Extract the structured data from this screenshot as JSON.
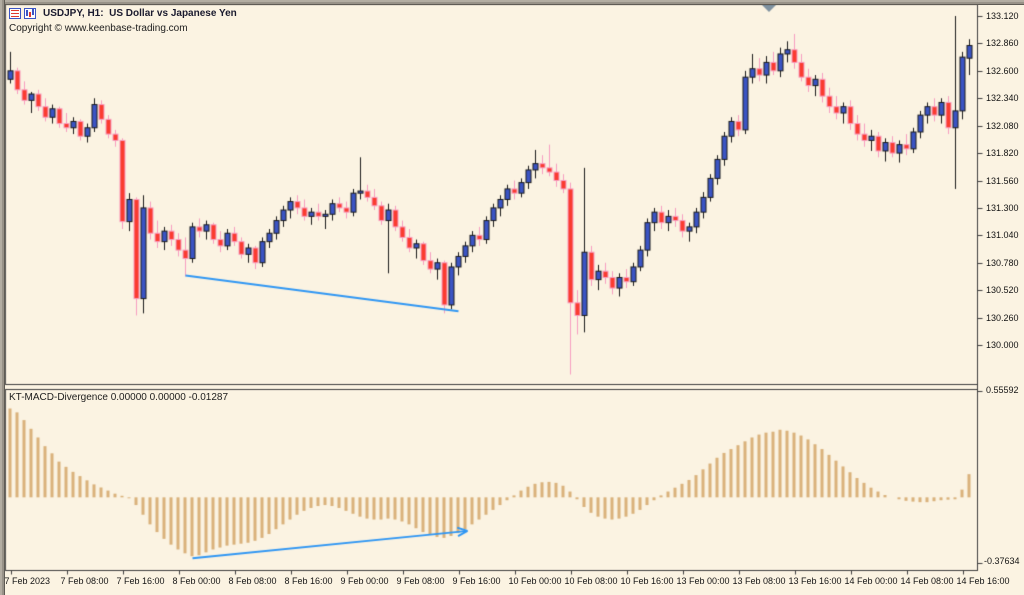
{
  "window": {
    "title": "USDJPY, H1:  US Dollar vs Japanese Yen",
    "copyright": "Copyright © www.keenbase-trading.com",
    "indicator_label": "KT-MACD-Divergence 0.00000 0.00000 -0.01287",
    "icons": [
      "ohlc-list-icon",
      "candlestick-chart-icon"
    ]
  },
  "colors": {
    "background": "#fbf3e2",
    "bull_body": "#3b54c4",
    "bull_line": "#1a1a1a",
    "bear_body": "#fa3b30",
    "bear_line": "#f79ec0",
    "histogram": "#d9b17b",
    "divergence_line": "#2f96f3",
    "border": "#3c3c3c",
    "text": "#141414",
    "shift_marker": "#7f92a0"
  },
  "chart_data": [
    {
      "type": "candlestick",
      "symbol": "USDJPY",
      "timeframe": "H1",
      "title": "USDJPY, H1:  US Dollar vs Japanese Yen",
      "ylim": [
        129.63,
        133.23
      ],
      "grid": false,
      "y_ticks": [
        {
          "label": "133.120",
          "price": 133.12
        },
        {
          "label": "132.860",
          "price": 132.86
        },
        {
          "label": "132.600",
          "price": 132.6
        },
        {
          "label": "132.340",
          "price": 132.34
        },
        {
          "label": "132.080",
          "price": 132.08
        },
        {
          "label": "131.820",
          "price": 131.82
        },
        {
          "label": "131.560",
          "price": 131.56
        },
        {
          "label": "131.300",
          "price": 131.3
        },
        {
          "label": "131.040",
          "price": 131.04
        },
        {
          "label": "130.780",
          "price": 130.78
        },
        {
          "label": "130.520",
          "price": 130.52
        },
        {
          "label": "130.260",
          "price": 130.26
        },
        {
          "label": "130.000",
          "price": 130.0
        }
      ],
      "x_ticks": [
        {
          "label": "7 Feb 2023",
          "bar": 0
        },
        {
          "label": "7 Feb 08:00",
          "bar": 8
        },
        {
          "label": "7 Feb 16:00",
          "bar": 16
        },
        {
          "label": "8 Feb 00:00",
          "bar": 24
        },
        {
          "label": "8 Feb 08:00",
          "bar": 32
        },
        {
          "label": "8 Feb 16:00",
          "bar": 40
        },
        {
          "label": "9 Feb 00:00",
          "bar": 48
        },
        {
          "label": "9 Feb 08:00",
          "bar": 56
        },
        {
          "label": "9 Feb 16:00",
          "bar": 64
        },
        {
          "label": "10 Feb 00:00",
          "bar": 72
        },
        {
          "label": "10 Feb 08:00",
          "bar": 80
        },
        {
          "label": "10 Feb 16:00",
          "bar": 88
        },
        {
          "label": "13 Feb 00:00",
          "bar": 96
        },
        {
          "label": "13 Feb 08:00",
          "bar": 104
        },
        {
          "label": "13 Feb 16:00",
          "bar": 112
        },
        {
          "label": "14 Feb 00:00",
          "bar": 120
        },
        {
          "label": "14 Feb 08:00",
          "bar": 128
        },
        {
          "label": "14 Feb 16:00",
          "bar": 136
        }
      ],
      "divergence_line": {
        "from_bar": 25,
        "from_price": 130.66,
        "to_bar": 64,
        "to_price": 130.32
      },
      "candles": [
        [
          132.52,
          132.78,
          132.48,
          132.6
        ],
        [
          132.6,
          132.63,
          132.38,
          132.42
        ],
        [
          132.42,
          132.5,
          132.28,
          132.32
        ],
        [
          132.32,
          132.4,
          132.2,
          132.38
        ],
        [
          132.38,
          132.42,
          132.22,
          132.26
        ],
        [
          132.26,
          132.34,
          132.12,
          132.16
        ],
        [
          132.16,
          132.28,
          132.1,
          132.24
        ],
        [
          132.24,
          132.26,
          132.06,
          132.1
        ],
        [
          132.1,
          132.2,
          132.02,
          132.06
        ],
        [
          132.06,
          132.16,
          132.0,
          132.12
        ],
        [
          132.12,
          132.14,
          131.94,
          131.98
        ],
        [
          131.98,
          132.1,
          131.92,
          132.06
        ],
        [
          132.06,
          132.34,
          132.02,
          132.28
        ],
        [
          132.28,
          132.32,
          132.1,
          132.14
        ],
        [
          132.14,
          132.18,
          131.96,
          132.0
        ],
        [
          132.0,
          132.04,
          131.88,
          131.94
        ],
        [
          131.94,
          131.96,
          131.1,
          131.17
        ],
        [
          131.17,
          131.44,
          131.08,
          131.38
        ],
        [
          131.38,
          131.4,
          130.28,
          130.44
        ],
        [
          130.44,
          131.42,
          130.3,
          131.3
        ],
        [
          131.3,
          131.36,
          131.0,
          131.06
        ],
        [
          131.06,
          131.18,
          130.92,
          130.98
        ],
        [
          130.98,
          131.12,
          130.9,
          131.08
        ],
        [
          131.08,
          131.14,
          130.94,
          131.0
        ],
        [
          131.0,
          131.06,
          130.84,
          130.9
        ],
        [
          130.9,
          131.02,
          130.65,
          130.82
        ],
        [
          130.82,
          131.16,
          130.78,
          131.12
        ],
        [
          131.12,
          131.2,
          131.02,
          131.08
        ],
        [
          131.08,
          131.18,
          131.0,
          131.14
        ],
        [
          131.14,
          131.16,
          130.96,
          131.0
        ],
        [
          131.0,
          131.08,
          130.88,
          130.94
        ],
        [
          130.94,
          131.1,
          130.9,
          131.06
        ],
        [
          131.06,
          131.12,
          130.94,
          130.98
        ],
        [
          130.98,
          131.02,
          130.82,
          130.86
        ],
        [
          130.86,
          130.96,
          130.78,
          130.92
        ],
        [
          130.92,
          130.94,
          130.72,
          130.78
        ],
        [
          130.78,
          131.02,
          130.74,
          130.98
        ],
        [
          130.98,
          131.1,
          130.92,
          131.06
        ],
        [
          131.06,
          131.22,
          131.0,
          131.18
        ],
        [
          131.18,
          131.32,
          131.12,
          131.28
        ],
        [
          131.28,
          131.4,
          131.2,
          131.36
        ],
        [
          131.36,
          131.42,
          131.24,
          131.3
        ],
        [
          131.3,
          131.38,
          131.18,
          131.22
        ],
        [
          131.22,
          131.3,
          131.14,
          131.26
        ],
        [
          131.26,
          131.34,
          131.18,
          131.22
        ],
        [
          131.22,
          131.28,
          131.1,
          131.24
        ],
        [
          131.24,
          131.38,
          131.18,
          131.34
        ],
        [
          131.34,
          131.4,
          131.26,
          131.3
        ],
        [
          131.3,
          131.36,
          131.2,
          131.26
        ],
        [
          131.26,
          131.48,
          131.22,
          131.44
        ],
        [
          131.44,
          131.78,
          131.38,
          131.46
        ],
        [
          131.46,
          131.52,
          131.36,
          131.4
        ],
        [
          131.4,
          131.48,
          131.28,
          131.32
        ],
        [
          131.32,
          131.36,
          131.14,
          131.18
        ],
        [
          131.18,
          131.34,
          130.68,
          131.28
        ],
        [
          131.28,
          131.32,
          131.08,
          131.12
        ],
        [
          131.12,
          131.18,
          130.98,
          131.02
        ],
        [
          131.02,
          131.1,
          130.88,
          130.92
        ],
        [
          130.92,
          131.0,
          130.82,
          130.96
        ],
        [
          130.96,
          130.98,
          130.76,
          130.8
        ],
        [
          130.8,
          130.88,
          130.68,
          130.72
        ],
        [
          130.72,
          130.82,
          130.62,
          130.78
        ],
        [
          130.78,
          130.8,
          130.3,
          130.38
        ],
        [
          130.38,
          130.78,
          130.34,
          130.74
        ],
        [
          130.74,
          130.88,
          130.66,
          130.84
        ],
        [
          130.84,
          130.98,
          130.78,
          130.94
        ],
        [
          130.94,
          131.08,
          130.88,
          131.04
        ],
        [
          131.04,
          131.12,
          130.94,
          131.0
        ],
        [
          131.0,
          131.22,
          130.96,
          131.18
        ],
        [
          131.18,
          131.34,
          131.12,
          131.3
        ],
        [
          131.3,
          131.42,
          131.22,
          131.38
        ],
        [
          131.38,
          131.52,
          131.32,
          131.48
        ],
        [
          131.48,
          131.56,
          131.38,
          131.44
        ],
        [
          131.44,
          131.58,
          131.4,
          131.54
        ],
        [
          131.54,
          131.7,
          131.48,
          131.66
        ],
        [
          131.66,
          131.85,
          131.58,
          131.72
        ],
        [
          131.72,
          131.8,
          131.62,
          131.68
        ],
        [
          131.68,
          131.9,
          131.6,
          131.64
        ],
        [
          131.64,
          131.72,
          131.5,
          131.56
        ],
        [
          131.56,
          131.62,
          131.44,
          131.48
        ],
        [
          131.48,
          131.54,
          129.72,
          130.4
        ],
        [
          130.4,
          130.52,
          130.1,
          130.28
        ],
        [
          130.28,
          131.68,
          130.12,
          130.88
        ],
        [
          130.88,
          130.94,
          130.56,
          130.62
        ],
        [
          130.62,
          130.76,
          130.52,
          130.7
        ],
        [
          130.7,
          130.78,
          130.58,
          130.64
        ],
        [
          130.64,
          130.7,
          130.48,
          130.54
        ],
        [
          130.54,
          130.68,
          130.46,
          130.64
        ],
        [
          130.64,
          130.72,
          130.54,
          130.6
        ],
        [
          130.6,
          130.78,
          130.56,
          130.74
        ],
        [
          130.74,
          130.94,
          130.7,
          130.9
        ],
        [
          130.9,
          131.2,
          130.84,
          131.16
        ],
        [
          131.16,
          131.3,
          131.08,
          131.26
        ],
        [
          131.26,
          131.32,
          131.1,
          131.16
        ],
        [
          131.16,
          131.28,
          131.08,
          131.22
        ],
        [
          131.22,
          131.3,
          131.12,
          131.18
        ],
        [
          131.18,
          131.24,
          131.02,
          131.08
        ],
        [
          131.08,
          131.16,
          130.98,
          131.12
        ],
        [
          131.12,
          131.3,
          131.06,
          131.26
        ],
        [
          131.26,
          131.45,
          131.2,
          131.4
        ],
        [
          131.4,
          131.62,
          131.36,
          131.58
        ],
        [
          131.58,
          131.8,
          131.52,
          131.76
        ],
        [
          131.76,
          132.02,
          131.7,
          131.98
        ],
        [
          131.98,
          132.16,
          131.92,
          132.12
        ],
        [
          132.12,
          132.18,
          131.98,
          132.04
        ],
        [
          132.04,
          132.6,
          132.0,
          132.54
        ],
        [
          132.54,
          132.76,
          132.48,
          132.62
        ],
        [
          132.62,
          132.72,
          132.5,
          132.56
        ],
        [
          132.56,
          132.74,
          132.48,
          132.68
        ],
        [
          132.68,
          132.78,
          132.56,
          132.6
        ],
        [
          132.6,
          132.82,
          132.54,
          132.76
        ],
        [
          132.76,
          132.88,
          132.68,
          132.8
        ],
        [
          132.8,
          132.95,
          132.62,
          132.68
        ],
        [
          132.68,
          132.76,
          132.5,
          132.54
        ],
        [
          132.54,
          132.62,
          132.4,
          132.46
        ],
        [
          132.46,
          132.56,
          132.36,
          132.52
        ],
        [
          132.52,
          132.58,
          132.3,
          132.36
        ],
        [
          132.36,
          132.44,
          132.2,
          132.26
        ],
        [
          132.26,
          132.36,
          132.14,
          132.2
        ],
        [
          132.2,
          132.3,
          132.1,
          132.26
        ],
        [
          132.26,
          132.32,
          132.04,
          132.1
        ],
        [
          132.1,
          132.18,
          131.94,
          132.0
        ],
        [
          132.0,
          132.1,
          131.88,
          131.94
        ],
        [
          131.94,
          132.04,
          131.84,
          131.98
        ],
        [
          131.98,
          132.02,
          131.78,
          131.84
        ],
        [
          131.84,
          131.96,
          131.74,
          131.92
        ],
        [
          131.92,
          131.98,
          131.78,
          131.82
        ],
        [
          131.82,
          131.94,
          131.73,
          131.9
        ],
        [
          131.9,
          132.0,
          131.8,
          131.86
        ],
        [
          131.86,
          132.06,
          131.82,
          132.02
        ],
        [
          132.02,
          132.22,
          131.96,
          132.18
        ],
        [
          132.18,
          132.3,
          132.1,
          132.26
        ],
        [
          132.26,
          132.34,
          132.12,
          132.18
        ],
        [
          132.18,
          132.34,
          132.1,
          132.3
        ],
        [
          132.3,
          132.36,
          132.0,
          132.06
        ],
        [
          132.06,
          133.12,
          131.48,
          132.22
        ],
        [
          132.22,
          132.78,
          132.14,
          132.73
        ],
        [
          132.72,
          132.9,
          132.56,
          132.84
        ]
      ]
    },
    {
      "type": "bar",
      "name": "KT-MACD-Divergence",
      "display_values": [
        "0.00000",
        "0.00000",
        "-0.01287"
      ],
      "axis_max": 0.55592,
      "axis_min": -0.37634,
      "axis_max_label": "0.55592",
      "axis_min_label": "-0.37634",
      "divergence_line": {
        "from_bar": 26,
        "from_value": -0.315,
        "to_bar": 65,
        "to_value": -0.175,
        "arrow_end": true
      },
      "values": [
        0.46,
        0.44,
        0.4,
        0.355,
        0.31,
        0.265,
        0.228,
        0.185,
        0.158,
        0.132,
        0.11,
        0.088,
        0.067,
        0.051,
        0.035,
        0.019,
        0.008,
        -0.005,
        -0.04,
        -0.09,
        -0.14,
        -0.18,
        -0.215,
        -0.245,
        -0.27,
        -0.29,
        -0.305,
        -0.3,
        -0.285,
        -0.27,
        -0.26,
        -0.25,
        -0.245,
        -0.24,
        -0.235,
        -0.225,
        -0.21,
        -0.19,
        -0.165,
        -0.14,
        -0.115,
        -0.09,
        -0.07,
        -0.055,
        -0.045,
        -0.04,
        -0.045,
        -0.055,
        -0.07,
        -0.085,
        -0.1,
        -0.11,
        -0.115,
        -0.115,
        -0.11,
        -0.115,
        -0.125,
        -0.14,
        -0.16,
        -0.18,
        -0.195,
        -0.205,
        -0.21,
        -0.2,
        -0.185,
        -0.165,
        -0.14,
        -0.115,
        -0.09,
        -0.065,
        -0.04,
        -0.015,
        0.01,
        0.035,
        0.055,
        0.07,
        0.078,
        0.08,
        0.075,
        0.06,
        0.03,
        -0.01,
        -0.05,
        -0.08,
        -0.1,
        -0.11,
        -0.115,
        -0.11,
        -0.1,
        -0.085,
        -0.065,
        -0.04,
        -0.015,
        0.01,
        0.03,
        0.05,
        0.07,
        0.09,
        0.115,
        0.145,
        0.175,
        0.205,
        0.23,
        0.25,
        0.27,
        0.29,
        0.31,
        0.325,
        0.335,
        0.34,
        0.35,
        0.345,
        0.335,
        0.32,
        0.3,
        0.275,
        0.25,
        0.22,
        0.19,
        0.16,
        0.13,
        0.1,
        0.075,
        0.05,
        0.03,
        0.012,
        0.0,
        -0.01,
        -0.018,
        -0.022,
        -0.025,
        -0.025,
        -0.02,
        -0.015,
        -0.012,
        -0.01,
        0.04,
        0.12
      ]
    }
  ]
}
